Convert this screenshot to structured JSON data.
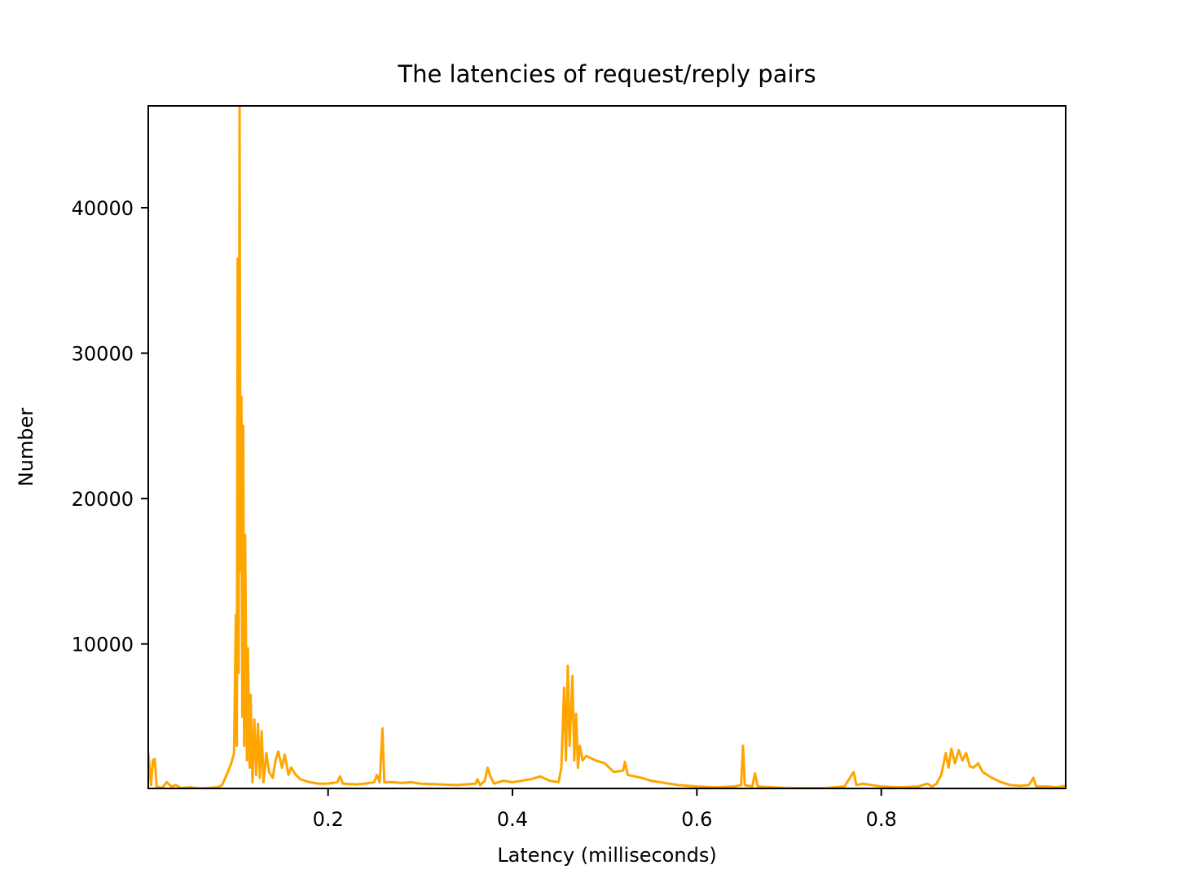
{
  "chart_data": {
    "type": "line",
    "title": "The latencies of request/reply pairs",
    "x_label": "Latency (milliseconds)",
    "y_label": "Number",
    "x": [
      0.005,
      0.008,
      0.01,
      0.012,
      0.014,
      0.02,
      0.025,
      0.03,
      0.035,
      0.04,
      0.05,
      0.06,
      0.07,
      0.08,
      0.085,
      0.09,
      0.095,
      0.098,
      0.1,
      0.101,
      0.102,
      0.103,
      0.104,
      0.105,
      0.106,
      0.107,
      0.108,
      0.109,
      0.11,
      0.112,
      0.113,
      0.115,
      0.116,
      0.118,
      0.12,
      0.122,
      0.124,
      0.126,
      0.128,
      0.13,
      0.133,
      0.136,
      0.14,
      0.143,
      0.146,
      0.15,
      0.153,
      0.157,
      0.16,
      0.165,
      0.17,
      0.18,
      0.19,
      0.2,
      0.21,
      0.213,
      0.216,
      0.23,
      0.24,
      0.25,
      0.253,
      0.256,
      0.259,
      0.261,
      0.27,
      0.28,
      0.29,
      0.3,
      0.32,
      0.34,
      0.36,
      0.362,
      0.365,
      0.37,
      0.373,
      0.376,
      0.38,
      0.39,
      0.4,
      0.41,
      0.42,
      0.43,
      0.44,
      0.45,
      0.453,
      0.456,
      0.458,
      0.46,
      0.462,
      0.465,
      0.467,
      0.469,
      0.471,
      0.473,
      0.476,
      0.48,
      0.49,
      0.5,
      0.51,
      0.52,
      0.522,
      0.525,
      0.54,
      0.55,
      0.56,
      0.58,
      0.6,
      0.62,
      0.64,
      0.648,
      0.65,
      0.652,
      0.66,
      0.663,
      0.666,
      0.68,
      0.7,
      0.74,
      0.76,
      0.77,
      0.773,
      0.78,
      0.8,
      0.82,
      0.84,
      0.85,
      0.855,
      0.86,
      0.865,
      0.87,
      0.873,
      0.876,
      0.88,
      0.884,
      0.888,
      0.892,
      0.896,
      0.9,
      0.905,
      0.91,
      0.92,
      0.93,
      0.94,
      0.95,
      0.96,
      0.965,
      0.968,
      0.98,
      0.99,
      1.0
    ],
    "series": [
      {
        "name": "latency",
        "color": "#ffa500",
        "values": [
          2500,
          300,
          2000,
          2100,
          200,
          100,
          500,
          200,
          300,
          100,
          150,
          80,
          100,
          150,
          300,
          1000,
          1800,
          2500,
          12000,
          3000,
          36500,
          8000,
          47000,
          15000,
          27000,
          5000,
          25000,
          3000,
          17500,
          2000,
          9700,
          1500,
          6500,
          500,
          4800,
          1000,
          4500,
          800,
          4000,
          500,
          2500,
          1200,
          800,
          2000,
          2600,
          1500,
          2400,
          1000,
          1500,
          1000,
          700,
          500,
          400,
          400,
          500,
          900,
          400,
          350,
          400,
          500,
          1000,
          500,
          4200,
          500,
          500,
          450,
          500,
          400,
          350,
          300,
          400,
          700,
          300,
          600,
          1500,
          900,
          400,
          600,
          500,
          600,
          700,
          900,
          600,
          500,
          1500,
          7000,
          2000,
          8500,
          3000,
          7800,
          2000,
          5200,
          1500,
          3000,
          2000,
          2300,
          2000,
          1800,
          1200,
          1300,
          1900,
          1000,
          800,
          600,
          500,
          300,
          200,
          150,
          200,
          300,
          3000,
          300,
          200,
          1100,
          200,
          150,
          100,
          100,
          200,
          1200,
          300,
          400,
          200,
          150,
          200,
          400,
          200,
          400,
          1000,
          2500,
          1500,
          2800,
          1800,
          2700,
          2000,
          2500,
          1600,
          1500,
          1800,
          1200,
          800,
          500,
          300,
          250,
          300,
          800,
          200,
          200,
          150,
          250
        ]
      }
    ],
    "xlim": [
      0.005,
      1.0
    ],
    "ylim": [
      70,
      47000
    ],
    "xticks": [
      0.2,
      0.4,
      0.6,
      0.8
    ],
    "yticks": [
      10000,
      20000,
      30000,
      40000
    ],
    "grid": false
  }
}
